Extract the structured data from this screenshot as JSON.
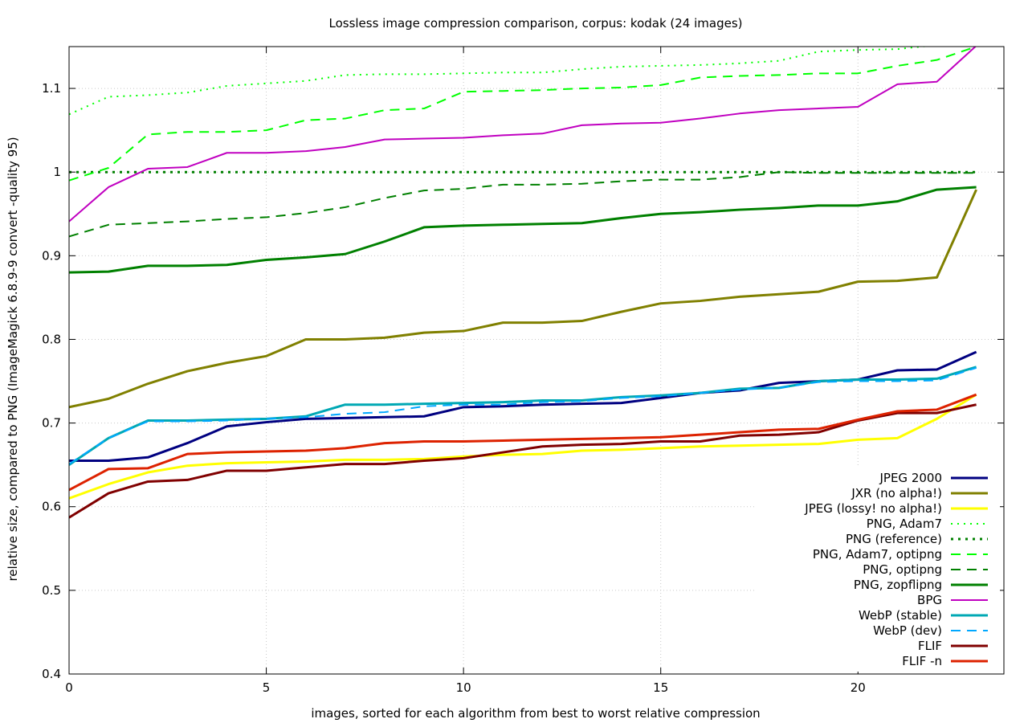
{
  "chart_data": {
    "type": "line",
    "title": "Lossless image compression comparison, corpus: kodak (24 images)",
    "xlabel": "images, sorted for each algorithm from best to worst relative compression",
    "ylabel": "relative size, compared to PNG (ImageMagick 6.8.9-9 convert -quality 95)",
    "xlim": [
      0,
      24
    ],
    "ylim": [
      0.4,
      1.15
    ],
    "xticks": [
      0,
      5,
      10,
      15,
      20
    ],
    "yticks": [
      0.4,
      0.5,
      0.6,
      0.7,
      0.8,
      0.9,
      1,
      1.1
    ],
    "grid": true,
    "legend_position": "bottom-right",
    "x": [
      0,
      1,
      2,
      3,
      4,
      5,
      6,
      7,
      8,
      9,
      10,
      11,
      12,
      13,
      14,
      15,
      16,
      17,
      18,
      19,
      20,
      21,
      22,
      23
    ],
    "series": [
      {
        "name": "JPEG 2000",
        "color": "#000080",
        "dash": "solid",
        "width": 3,
        "values": [
          0.655,
          0.655,
          0.659,
          0.676,
          0.696,
          0.701,
          0.705,
          0.706,
          0.707,
          0.708,
          0.719,
          0.72,
          0.722,
          0.723,
          0.724,
          0.73,
          0.736,
          0.739,
          0.748,
          0.75,
          0.752,
          0.763,
          0.764,
          0.785
        ]
      },
      {
        "name": "JXR (no alpha!)",
        "color": "#808000",
        "dash": "solid",
        "width": 3,
        "values": [
          0.719,
          0.729,
          0.747,
          0.762,
          0.772,
          0.78,
          0.8,
          0.8,
          0.802,
          0.808,
          0.81,
          0.82,
          0.82,
          0.822,
          0.833,
          0.843,
          0.846,
          0.851,
          0.854,
          0.857,
          0.869,
          0.87,
          0.874,
          0.979
        ]
      },
      {
        "name": "JPEG (lossy! no alpha!)",
        "color": "#ffff00",
        "dash": "solid",
        "width": 3,
        "values": [
          0.61,
          0.627,
          0.641,
          0.649,
          0.652,
          0.653,
          0.654,
          0.656,
          0.656,
          0.657,
          0.66,
          0.662,
          0.663,
          0.667,
          0.668,
          0.67,
          0.672,
          0.673,
          0.674,
          0.675,
          0.68,
          0.682,
          0.705,
          0.734
        ]
      },
      {
        "name": "PNG, Adam7",
        "color": "#00ff00",
        "dash": "dotted",
        "width": 2,
        "values": [
          1.069,
          1.09,
          1.092,
          1.095,
          1.103,
          1.106,
          1.109,
          1.116,
          1.117,
          1.117,
          1.118,
          1.119,
          1.119,
          1.123,
          1.126,
          1.127,
          1.128,
          1.13,
          1.133,
          1.144,
          1.146,
          1.147,
          1.152,
          1.157
        ]
      },
      {
        "name": "PNG (reference)",
        "color": "#008000",
        "dash": "dotted-bold",
        "width": 3,
        "values": [
          1,
          1,
          1,
          1,
          1,
          1,
          1,
          1,
          1,
          1,
          1,
          1,
          1,
          1,
          1,
          1,
          1,
          1,
          1,
          1,
          1,
          1,
          1,
          1
        ]
      },
      {
        "name": "PNG, Adam7, optipng",
        "color": "#00ff00",
        "dash": "dashed",
        "width": 2,
        "values": [
          0.99,
          1.005,
          1.045,
          1.048,
          1.048,
          1.05,
          1.062,
          1.064,
          1.074,
          1.076,
          1.096,
          1.097,
          1.098,
          1.1,
          1.101,
          1.104,
          1.113,
          1.115,
          1.116,
          1.118,
          1.118,
          1.127,
          1.134,
          1.15
        ]
      },
      {
        "name": "PNG, optipng",
        "color": "#008000",
        "dash": "dashed",
        "width": 2,
        "values": [
          0.923,
          0.937,
          0.939,
          0.941,
          0.944,
          0.946,
          0.951,
          0.958,
          0.969,
          0.978,
          0.98,
          0.985,
          0.985,
          0.986,
          0.989,
          0.991,
          0.991,
          0.994,
          1.0,
          0.999,
          0.999,
          0.999,
          0.999,
          0.999
        ]
      },
      {
        "name": "PNG, zopflipng",
        "color": "#008000",
        "dash": "solid",
        "width": 3,
        "values": [
          0.88,
          0.881,
          0.888,
          0.888,
          0.889,
          0.895,
          0.898,
          0.902,
          0.917,
          0.934,
          0.936,
          0.937,
          0.938,
          0.939,
          0.945,
          0.95,
          0.952,
          0.955,
          0.957,
          0.96,
          0.96,
          0.965,
          0.979,
          0.982
        ]
      },
      {
        "name": "BPG",
        "color": "#c000c0",
        "dash": "solid",
        "width": 2,
        "values": [
          0.941,
          0.982,
          1.004,
          1.006,
          1.023,
          1.023,
          1.025,
          1.03,
          1.039,
          1.04,
          1.041,
          1.044,
          1.046,
          1.056,
          1.058,
          1.059,
          1.064,
          1.07,
          1.074,
          1.076,
          1.078,
          1.105,
          1.108,
          1.151
        ]
      },
      {
        "name": "WebP (stable)",
        "color": "#00a8b4",
        "dash": "solid",
        "width": 3,
        "values": [
          0.65,
          0.682,
          0.703,
          0.703,
          0.704,
          0.705,
          0.708,
          0.722,
          0.722,
          0.723,
          0.724,
          0.725,
          0.727,
          0.727,
          0.731,
          0.733,
          0.736,
          0.741,
          0.742,
          0.75,
          0.752,
          0.752,
          0.753,
          0.767
        ]
      },
      {
        "name": "WebP (dev)",
        "color": "#00a8ff",
        "dash": "dashed",
        "width": 2,
        "values": [
          0.651,
          0.682,
          0.702,
          0.702,
          0.703,
          0.705,
          0.707,
          0.711,
          0.713,
          0.72,
          0.722,
          0.722,
          0.725,
          0.726,
          0.73,
          0.732,
          0.736,
          0.74,
          0.742,
          0.749,
          0.75,
          0.75,
          0.751,
          0.766
        ]
      },
      {
        "name": "FLIF",
        "color": "#800000",
        "dash": "solid",
        "width": 3,
        "values": [
          0.587,
          0.616,
          0.63,
          0.632,
          0.643,
          0.643,
          0.647,
          0.651,
          0.651,
          0.655,
          0.658,
          0.665,
          0.672,
          0.674,
          0.675,
          0.678,
          0.678,
          0.685,
          0.686,
          0.689,
          0.703,
          0.712,
          0.712,
          0.722
        ]
      },
      {
        "name": "FLIF -n",
        "color": "#dd2200",
        "dash": "solid",
        "width": 3,
        "values": [
          0.62,
          0.645,
          0.646,
          0.663,
          0.665,
          0.666,
          0.667,
          0.67,
          0.676,
          0.678,
          0.678,
          0.679,
          0.68,
          0.681,
          0.682,
          0.683,
          0.686,
          0.689,
          0.692,
          0.693,
          0.704,
          0.714,
          0.716,
          0.734
        ]
      }
    ]
  }
}
